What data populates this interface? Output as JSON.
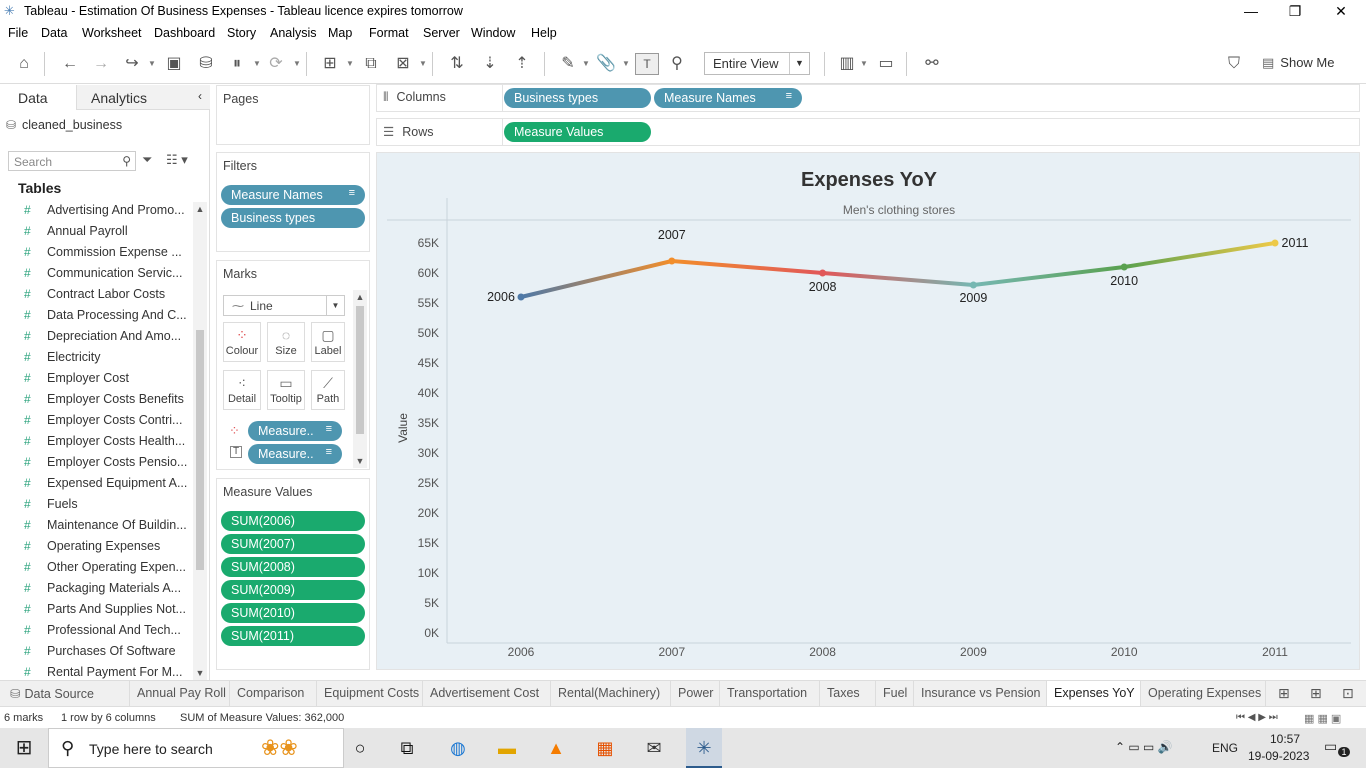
{
  "window": {
    "title": "Tableau - Estimation Of Business Expenses - Tableau licence expires tomorrow",
    "minimize_icon": "minimize-icon",
    "restore_icon": "restore-icon",
    "close_icon": "close-icon"
  },
  "menu": [
    "File",
    "Data",
    "Worksheet",
    "Dashboard",
    "Story",
    "Analysis",
    "Map",
    "Format",
    "Server",
    "Window",
    "Help"
  ],
  "toolbar": {
    "view_select": "Entire View",
    "show_me": "Show Me"
  },
  "left_pane": {
    "tab_data": "Data",
    "tab_analytics": "Analytics",
    "datasource": "cleaned_business",
    "search_placeholder": "Search",
    "tables_heading": "Tables",
    "fields": [
      "Advertising And Promo...",
      "Annual Payroll",
      "Commission Expense ...",
      "Communication Servic...",
      "Contract Labor Costs",
      "Data Processing And C...",
      "Depreciation And Amo...",
      "Electricity",
      "Employer Cost",
      "Employer Costs Benefits",
      "Employer Costs Contri...",
      "Employer Costs Health...",
      "Employer Costs Pensio...",
      "Expensed Equipment A...",
      "Fuels",
      "Maintenance Of Buildin...",
      "Operating Expenses",
      "Other Operating Expen...",
      "Packaging Materials A...",
      "Parts And Supplies Not...",
      "Professional And Tech...",
      "Purchases Of Software",
      "Rental Payment For M..."
    ]
  },
  "pages": {
    "title": "Pages"
  },
  "filters": {
    "title": "Filters",
    "pills": [
      "Measure Names",
      "Business types"
    ]
  },
  "marks": {
    "title": "Marks",
    "type": "Line",
    "buttons": [
      "Colour",
      "Size",
      "Label",
      "Detail",
      "Tooltip",
      "Path"
    ],
    "pills": [
      "Measure..",
      "Measure.."
    ]
  },
  "measure_values": {
    "title": "Measure Values",
    "pills": [
      "SUM(2006)",
      "SUM(2007)",
      "SUM(2008)",
      "SUM(2009)",
      "SUM(2010)",
      "SUM(2011)"
    ]
  },
  "shelves": {
    "columns_label": "Columns",
    "rows_label": "Rows",
    "columns": [
      "Business types",
      "Measure Names"
    ],
    "rows": [
      "Measure Values"
    ]
  },
  "chart_data": {
    "type": "line",
    "title": "Expenses YoY",
    "subtitle": "Men's clothing stores",
    "ylabel": "Value",
    "xlabel": "",
    "x": [
      "2006",
      "2007",
      "2008",
      "2009",
      "2010",
      "2011"
    ],
    "series": [
      {
        "values": [
          56000,
          62000,
          60000,
          58000,
          61000,
          65000
        ],
        "labels": [
          "2006",
          "2007",
          "2008",
          "2009",
          "2010",
          "2011"
        ]
      }
    ],
    "ylim": [
      0,
      65000
    ],
    "yticks": [
      "0K",
      "5K",
      "10K",
      "15K",
      "20K",
      "25K",
      "30K",
      "35K",
      "40K",
      "45K",
      "50K",
      "55K",
      "60K",
      "65K"
    ],
    "grid": false,
    "colors": [
      "#4e79a7",
      "#f28e2b",
      "#e15759",
      "#76b7b2",
      "#59a14f",
      "#edc948"
    ]
  },
  "sheet_tabs": {
    "datasource": "Data Source",
    "tabs": [
      "Annual Pay Roll",
      "Comparison",
      "Equipment Costs",
      "Advertisement Cost",
      "Rental(Machinery)",
      "Power",
      "Transportation",
      "Taxes",
      "Fuel",
      "Insurance vs Pension",
      "Expenses YoY",
      "Operating Expenses"
    ],
    "active": "Expenses YoY"
  },
  "status": {
    "marks": "6 marks",
    "rows_cols": "1 row  by  6 columns",
    "sum": "SUM of Measure Values: 362,000"
  },
  "taskbar": {
    "search": "Type here to search",
    "lang": "ENG",
    "time": "10:57",
    "date": "19-09-2023",
    "notif": "1"
  }
}
